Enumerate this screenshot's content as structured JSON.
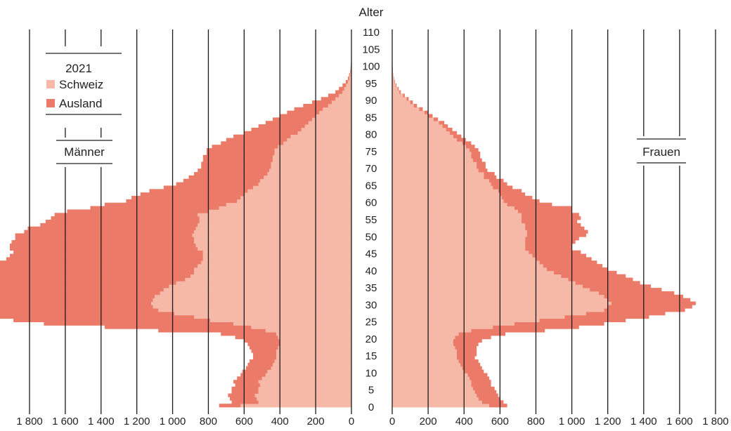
{
  "chart_data": {
    "type": "bar",
    "orientation": "horizontal-population-pyramid",
    "title": "",
    "ylabel": "Alter",
    "year": "2021",
    "legend": [
      {
        "name": "Schweiz",
        "color": "#f6b9a8"
      },
      {
        "name": "Ausland",
        "color": "#eb7b68"
      }
    ],
    "side_labels": {
      "left": "Männer",
      "right": "Frauen"
    },
    "y_ticks": [
      "0",
      "5",
      "10",
      "15",
      "20",
      "25",
      "30",
      "35",
      "40",
      "45",
      "50",
      "55",
      "60",
      "65",
      "70",
      "75",
      "80",
      "85",
      "90",
      "95",
      "100",
      "105",
      "110"
    ],
    "x_ticks_left": [
      "1 800",
      "1 600",
      "1 400",
      "1 200",
      "1 000",
      "800",
      "600",
      "400",
      "200",
      "0"
    ],
    "x_ticks_right": [
      "0",
      "200",
      "400",
      "600",
      "800",
      "1 000",
      "1 200",
      "1 400",
      "1 600",
      "1 800"
    ],
    "xlim": [
      0,
      1800
    ],
    "ylim": [
      0,
      110
    ],
    "ages": [
      0,
      105
    ],
    "series": [
      {
        "name": "Männer Schweiz",
        "values": [
          620,
          520,
          530,
          540,
          520,
          520,
          510,
          520,
          500,
          480,
          470,
          450,
          440,
          430,
          420,
          420,
          420,
          410,
          400,
          400,
          410,
          420,
          480,
          560,
          660,
          790,
          880,
          990,
          1080,
          1110,
          1120,
          1110,
          1100,
          1070,
          1050,
          1020,
          980,
          930,
          900,
          880,
          880,
          860,
          840,
          830,
          830,
          830,
          860,
          870,
          880,
          880,
          890,
          880,
          870,
          860,
          850,
          850,
          860,
          800,
          740,
          700,
          640,
          620,
          600,
          580,
          550,
          520,
          510,
          490,
          470,
          460,
          450,
          450,
          440,
          440,
          430,
          430,
          410,
          380,
          360,
          340,
          300,
          280,
          260,
          240,
          220,
          200,
          180,
          160,
          130,
          110,
          90,
          70,
          50,
          40,
          30,
          20,
          12,
          8,
          5,
          3,
          2,
          1,
          1,
          1,
          0,
          0,
          0,
          0,
          0,
          0,
          0,
          0
        ]
      },
      {
        "name": "Männer Ausland",
        "values": [
          120,
          150,
          150,
          150,
          150,
          150,
          140,
          140,
          140,
          140,
          140,
          140,
          140,
          140,
          130,
          130,
          140,
          160,
          180,
          200,
          240,
          310,
          600,
          820,
          1060,
          1100,
          1100,
          1150,
          1380,
          1480,
          1560,
          1600,
          1550,
          1480,
          1430,
          1390,
          1320,
          1300,
          1260,
          1200,
          1160,
          1140,
          1140,
          1100,
          1080,
          1060,
          1050,
          1040,
          1020,
          1000,
          990,
          950,
          940,
          880,
          860,
          830,
          800,
          790,
          720,
          680,
          620,
          610,
          580,
          550,
          500,
          460,
          430,
          420,
          410,
          400,
          390,
          390,
          390,
          390,
          380,
          380,
          370,
          350,
          340,
          320,
          300,
          280,
          260,
          240,
          220,
          200,
          180,
          160,
          140,
          110,
          80,
          60,
          40,
          30,
          20,
          12,
          8,
          5,
          3,
          2,
          1,
          1,
          1,
          0,
          0,
          0,
          0,
          0,
          0,
          0,
          0
        ]
      },
      {
        "name": "Frauen Schweiz",
        "values": [
          540,
          500,
          480,
          470,
          460,
          450,
          440,
          440,
          430,
          420,
          400,
          390,
          380,
          370,
          360,
          360,
          360,
          350,
          340,
          340,
          350,
          370,
          440,
          560,
          680,
          820,
          960,
          1080,
          1180,
          1200,
          1220,
          1200,
          1180,
          1150,
          1100,
          1060,
          1020,
          980,
          940,
          900,
          860,
          840,
          820,
          800,
          780,
          760,
          740,
          740,
          740,
          740,
          750,
          750,
          740,
          740,
          720,
          720,
          720,
          700,
          680,
          640,
          620,
          610,
          600,
          590,
          560,
          550,
          540,
          510,
          510,
          480,
          470,
          470,
          450,
          440,
          440,
          430,
          410,
          390,
          360,
          340,
          320,
          300,
          280,
          260,
          230,
          200,
          180,
          150,
          120,
          100,
          80,
          60,
          40,
          30,
          20,
          12,
          8,
          5,
          3,
          2,
          1,
          1,
          1,
          0,
          0,
          0,
          0,
          0,
          0,
          0,
          0,
          0
        ]
      },
      {
        "name": "Frauen Ausland",
        "values": [
          100,
          120,
          120,
          120,
          120,
          120,
          110,
          110,
          110,
          110,
          110,
          110,
          110,
          110,
          100,
          110,
          110,
          120,
          140,
          160,
          200,
          260,
          410,
          480,
          500,
          480,
          470,
          440,
          450,
          470,
          470,
          460,
          440,
          420,
          400,
          380,
          360,
          360,
          360,
          350,
          340,
          330,
          320,
          310,
          300,
          290,
          260,
          260,
          280,
          300,
          330,
          340,
          330,
          310,
          310,
          330,
          320,
          300,
          320,
          250,
          200,
          170,
          140,
          130,
          110,
          90,
          80,
          70,
          60,
          50,
          50,
          50,
          50,
          50,
          50,
          50,
          50,
          50,
          50,
          45,
          40,
          35,
          30,
          30,
          25,
          25,
          20,
          20,
          18,
          15,
          12,
          10,
          8,
          6,
          4,
          3,
          2,
          1,
          1,
          1,
          0,
          0,
          0,
          0,
          0,
          0,
          0,
          0,
          0,
          0
        ]
      }
    ]
  }
}
